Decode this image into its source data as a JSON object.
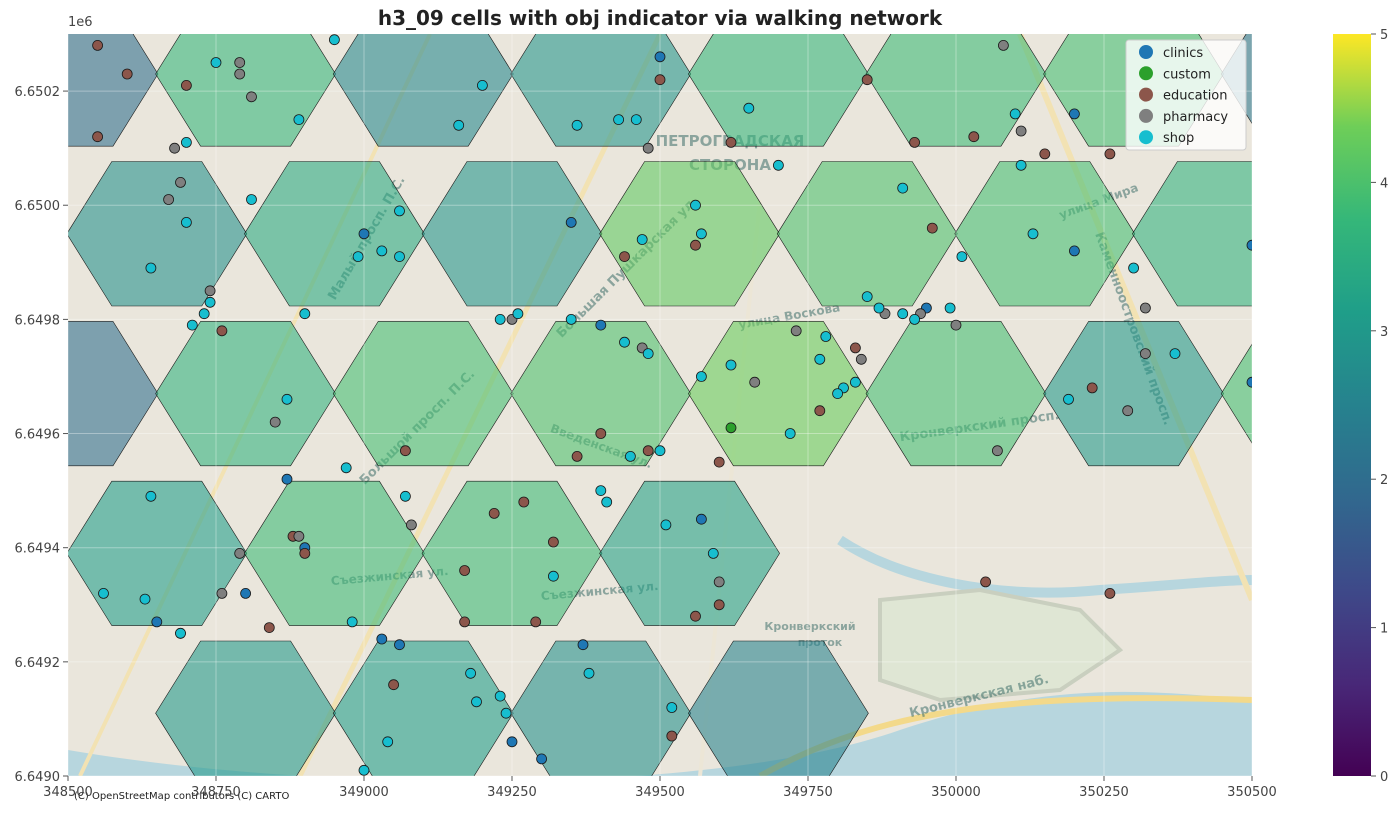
{
  "chart_data": {
    "type": "scatter",
    "title": "h3_09 cells with obj indicator via walking network",
    "x_ticks": [
      "348500",
      "348750",
      "349000",
      "349250",
      "349500",
      "349750",
      "350000",
      "350250",
      "350500"
    ],
    "y_ticks": [
      "6.6490",
      "6.6492",
      "6.6494",
      "6.6496",
      "6.6498",
      "6.6500",
      "6.6502"
    ],
    "y_offset_label": "1e6",
    "xlim": [
      348500,
      350500
    ],
    "ylim": [
      6649000,
      6650300
    ],
    "colorbar": {
      "min": 0,
      "max": 5,
      "ticks": [
        "0",
        "1",
        "2",
        "3",
        "4",
        "5"
      ],
      "colormap": "viridis"
    },
    "legend": {
      "position": "top-right",
      "entries": [
        "clinics",
        "custom",
        "education",
        "pharmacy",
        "shop"
      ]
    },
    "series_colors": {
      "clinics": "#1f77b4",
      "custom": "#2ca02c",
      "education": "#8c564b",
      "pharmacy": "#7f7f7f",
      "shop": "#17becf"
    },
    "hex_cells": [
      {
        "x": 348500,
        "y": 6650230,
        "value": 2.0
      },
      {
        "x": 348800,
        "y": 6650230,
        "value": 3.7
      },
      {
        "x": 349100,
        "y": 6650230,
        "value": 2.6
      },
      {
        "x": 349400,
        "y": 6650230,
        "value": 2.9
      },
      {
        "x": 349700,
        "y": 6650230,
        "value": 3.7
      },
      {
        "x": 350000,
        "y": 6650230,
        "value": 3.8
      },
      {
        "x": 350300,
        "y": 6650230,
        "value": 3.9
      },
      {
        "x": 350600,
        "y": 6650230,
        "value": 2.2
      },
      {
        "x": 348650,
        "y": 6649950,
        "value": 2.8
      },
      {
        "x": 348950,
        "y": 6649950,
        "value": 3.4
      },
      {
        "x": 349250,
        "y": 6649950,
        "value": 2.9
      },
      {
        "x": 349550,
        "y": 6649950,
        "value": 4.2
      },
      {
        "x": 349850,
        "y": 6649950,
        "value": 4.0
      },
      {
        "x": 350150,
        "y": 6649950,
        "value": 3.9
      },
      {
        "x": 350450,
        "y": 6649950,
        "value": 3.6
      },
      {
        "x": 348500,
        "y": 6649670,
        "value": 2.0
      },
      {
        "x": 348800,
        "y": 6649670,
        "value": 3.6
      },
      {
        "x": 349100,
        "y": 6649670,
        "value": 3.9
      },
      {
        "x": 349400,
        "y": 6649670,
        "value": 4.0
      },
      {
        "x": 349700,
        "y": 6649670,
        "value": 4.3
      },
      {
        "x": 350000,
        "y": 6649670,
        "value": 3.9
      },
      {
        "x": 350300,
        "y": 6649670,
        "value": 3.0
      },
      {
        "x": 350600,
        "y": 6649670,
        "value": 3.9
      },
      {
        "x": 348650,
        "y": 6649390,
        "value": 3.1
      },
      {
        "x": 348950,
        "y": 6649390,
        "value": 3.8
      },
      {
        "x": 349250,
        "y": 6649390,
        "value": 3.8
      },
      {
        "x": 349550,
        "y": 6649390,
        "value": 3.2
      },
      {
        "x": 348800,
        "y": 6649110,
        "value": 3.0
      },
      {
        "x": 349100,
        "y": 6649110,
        "value": 3.1
      },
      {
        "x": 349400,
        "y": 6649110,
        "value": 2.8
      },
      {
        "x": 349700,
        "y": 6649110,
        "value": 2.5
      }
    ],
    "points": {
      "clinics": [
        [
          349000,
          6649950
        ],
        [
          349400,
          6649790
        ],
        [
          349500,
          6650260
        ],
        [
          348870,
          6649520
        ],
        [
          349370,
          6649230
        ],
        [
          348900,
          6649400
        ],
        [
          349570,
          6649450
        ],
        [
          348800,
          6649320
        ],
        [
          348650,
          6649270
        ],
        [
          349030,
          6649240
        ],
        [
          349060,
          6649230
        ],
        [
          349250,
          6649060
        ],
        [
          349300,
          6649030
        ],
        [
          349950,
          6649820
        ],
        [
          350200,
          6650160
        ],
        [
          350200,
          6649920
        ],
        [
          350500,
          6649690
        ],
        [
          350500,
          6649930
        ],
        [
          349350,
          6649970
        ]
      ],
      "custom": [
        [
          349620,
          6649610
        ]
      ],
      "education": [
        [
          348550,
          6650280
        ],
        [
          348600,
          6650230
        ],
        [
          348550,
          6650120
        ],
        [
          348700,
          6650210
        ],
        [
          349500,
          6650220
        ],
        [
          349620,
          6650110
        ],
        [
          349850,
          6650220
        ],
        [
          349930,
          6650110
        ],
        [
          350030,
          6650120
        ],
        [
          350150,
          6650090
        ],
        [
          350260,
          6650090
        ],
        [
          349440,
          6649910
        ],
        [
          349560,
          6649930
        ],
        [
          349960,
          6649960
        ],
        [
          349830,
          6649750
        ],
        [
          349770,
          6649640
        ],
        [
          350230,
          6649680
        ],
        [
          348760,
          6649780
        ],
        [
          349070,
          6649570
        ],
        [
          349360,
          6649560
        ],
        [
          349480,
          6649570
        ],
        [
          349600,
          6649550
        ],
        [
          349270,
          6649480
        ],
        [
          349320,
          6649410
        ],
        [
          349220,
          6649460
        ],
        [
          349170,
          6649360
        ],
        [
          348900,
          6649390
        ],
        [
          348880,
          6649420
        ],
        [
          348840,
          6649260
        ],
        [
          349170,
          6649270
        ],
        [
          349290,
          6649270
        ],
        [
          349560,
          6649280
        ],
        [
          349600,
          6649300
        ],
        [
          350050,
          6649340
        ],
        [
          350260,
          6649320
        ],
        [
          349520,
          6649070
        ],
        [
          349050,
          6649160
        ],
        [
          349400,
          6649600
        ]
      ],
      "pharmacy": [
        [
          348790,
          6650250
        ],
        [
          348790,
          6650230
        ],
        [
          348810,
          6650190
        ],
        [
          348680,
          6650100
        ],
        [
          348690,
          6650040
        ],
        [
          348670,
          6650010
        ],
        [
          348740,
          6649850
        ],
        [
          348850,
          6649620
        ],
        [
          349250,
          6649800
        ],
        [
          349480,
          6650100
        ],
        [
          349470,
          6649750
        ],
        [
          349660,
          6649690
        ],
        [
          349730,
          6649780
        ],
        [
          349840,
          6649730
        ],
        [
          349940,
          6649810
        ],
        [
          350000,
          6649790
        ],
        [
          350070,
          6649570
        ],
        [
          350110,
          6650130
        ],
        [
          350080,
          6650280
        ],
        [
          350320,
          6649820
        ],
        [
          350320,
          6649740
        ],
        [
          350290,
          6649640
        ],
        [
          348890,
          6649420
        ],
        [
          348790,
          6649390
        ],
        [
          348760,
          6649320
        ],
        [
          348690,
          6649250
        ],
        [
          349080,
          6649440
        ],
        [
          349600,
          6649340
        ],
        [
          349880,
          6649810
        ]
      ],
      "shop": [
        [
          348750,
          6650250
        ],
        [
          348700,
          6650110
        ],
        [
          348700,
          6649970
        ],
        [
          348640,
          6649890
        ],
        [
          348740,
          6649830
        ],
        [
          348730,
          6649810
        ],
        [
          348710,
          6649790
        ],
        [
          348890,
          6650150
        ],
        [
          348810,
          6650010
        ],
        [
          348950,
          6650290
        ],
        [
          349060,
          6649990
        ],
        [
          349060,
          6649910
        ],
        [
          348990,
          6649910
        ],
        [
          349030,
          6649920
        ],
        [
          348900,
          6649810
        ],
        [
          349160,
          6650140
        ],
        [
          349200,
          6650210
        ],
        [
          349230,
          6649800
        ],
        [
          349260,
          6649810
        ],
        [
          349360,
          6650140
        ],
        [
          349430,
          6650150
        ],
        [
          349460,
          6650150
        ],
        [
          349560,
          6650000
        ],
        [
          349570,
          6649950
        ],
        [
          349470,
          6649940
        ],
        [
          349440,
          6649760
        ],
        [
          349350,
          6649800
        ],
        [
          349400,
          6649500
        ],
        [
          349410,
          6649480
        ],
        [
          349450,
          6649560
        ],
        [
          349480,
          6649740
        ],
        [
          349570,
          6649700
        ],
        [
          349620,
          6649720
        ],
        [
          349650,
          6650170
        ],
        [
          349700,
          6650070
        ],
        [
          349780,
          6649770
        ],
        [
          349850,
          6649840
        ],
        [
          349870,
          6649820
        ],
        [
          349910,
          6649810
        ],
        [
          349930,
          6649800
        ],
        [
          349990,
          6649820
        ],
        [
          349770,
          6649730
        ],
        [
          349810,
          6649680
        ],
        [
          349800,
          6649670
        ],
        [
          349830,
          6649690
        ],
        [
          349910,
          6650030
        ],
        [
          350010,
          6649910
        ],
        [
          350100,
          6650160
        ],
        [
          350110,
          6650070
        ],
        [
          350130,
          6649950
        ],
        [
          350300,
          6649890
        ],
        [
          350370,
          6649740
        ],
        [
          350190,
          6649660
        ],
        [
          349720,
          6649600
        ],
        [
          349500,
          6649570
        ],
        [
          349510,
          6649440
        ],
        [
          349590,
          6649390
        ],
        [
          349320,
          6649350
        ],
        [
          348970,
          6649540
        ],
        [
          349070,
          6649490
        ],
        [
          348640,
          6649490
        ],
        [
          348560,
          6649320
        ],
        [
          348630,
          6649310
        ],
        [
          348690,
          6649250
        ],
        [
          348980,
          6649270
        ],
        [
          349180,
          6649180
        ],
        [
          349190,
          6649130
        ],
        [
          349230,
          6649140
        ],
        [
          349240,
          6649110
        ],
        [
          349380,
          6649180
        ],
        [
          349520,
          6649120
        ],
        [
          349000,
          6649010
        ],
        [
          349040,
          6649060
        ],
        [
          349380,
          6648990
        ],
        [
          348870,
          6649660
        ]
      ]
    }
  }
}
